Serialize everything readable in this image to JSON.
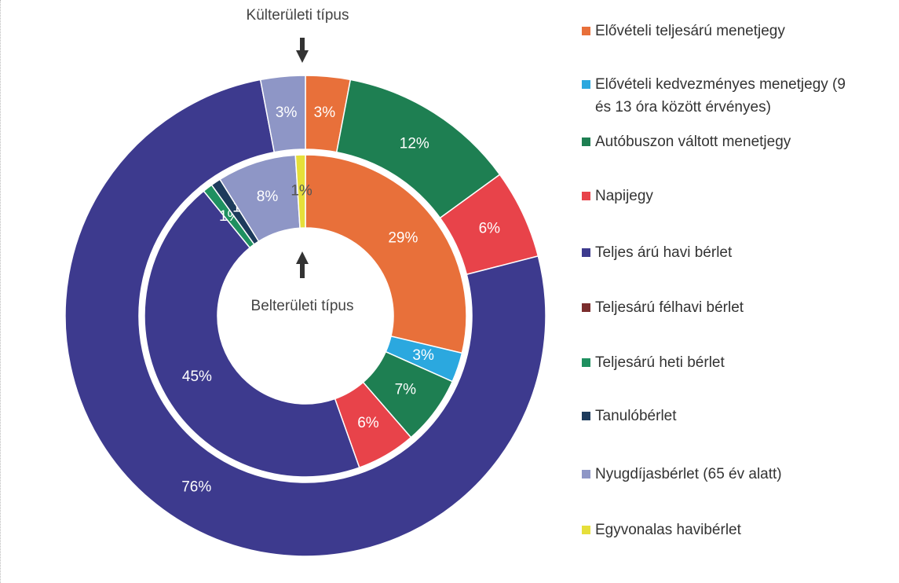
{
  "chart_data": {
    "type": "donut",
    "categories": [
      "Elővételi teljesárú menetjegy",
      "Elővételi kedvezményes menetjegy (9 és 13 óra között érvényes)",
      "Autóbuszon váltott menetjegy",
      "Napijegy",
      "Teljes árú havi bérlet",
      "Teljesárú félhavi bérlet",
      "Teljesárú heti bérlet",
      "Tanulóbérlet",
      "Nyugdíjasbérlet (65 év alatt)",
      "Egyvonalas havibérlet"
    ],
    "colors": [
      "#e8703a",
      "#2ba8df",
      "#1e7f52",
      "#e8434a",
      "#3d3a8e",
      "#7b2d2d",
      "#1f9060",
      "#1d3b5c",
      "#8e96c6",
      "#e6df3a"
    ],
    "series": [
      {
        "name": "Külterületi típus",
        "values": [
          3,
          0,
          12,
          6,
          76,
          0,
          0,
          0,
          3,
          0
        ],
        "value_labels": [
          "3%",
          null,
          "12%",
          "6%",
          "76%",
          null,
          null,
          null,
          "3%",
          null
        ]
      },
      {
        "name": "Belterületi típus",
        "values": [
          29,
          3,
          7,
          6,
          45,
          0,
          1,
          1,
          8,
          1
        ],
        "value_labels": [
          "29%",
          "3%",
          "7%",
          "6%",
          "45%",
          null,
          "1%",
          "1%",
          "8%",
          "1%"
        ]
      }
    ]
  }
}
